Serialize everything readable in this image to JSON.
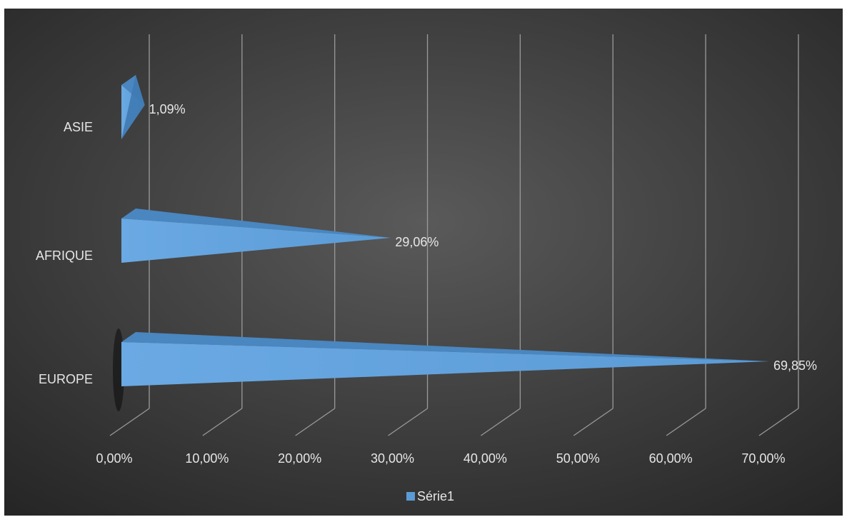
{
  "chart_data": {
    "type": "bar",
    "orientation": "horizontal",
    "style": "3d-pyramid",
    "categories": [
      "ASIE",
      "AFRIQUE",
      "EUROPE"
    ],
    "series": [
      {
        "name": "Série1",
        "values": [
          1.09,
          29.06,
          69.85
        ],
        "data_labels": [
          "1,09%",
          "29,06%",
          "69,85%"
        ]
      }
    ],
    "x_ticks": [
      0,
      10,
      20,
      30,
      40,
      50,
      60,
      70
    ],
    "x_tick_labels": [
      "0,00%",
      "10,00%",
      "20,00%",
      "30,00%",
      "40,00%",
      "50,00%",
      "60,00%",
      "70,00%"
    ],
    "xlim": [
      0,
      70
    ],
    "title": "",
    "xlabel": "",
    "ylabel": "",
    "grid": true,
    "legend_position": "bottom",
    "colors": {
      "background_center": "#5a5a5a",
      "background_edge": "#262626",
      "border": "#ffffff",
      "series": "#5b9bd5",
      "gridline": "#9a9a9a",
      "text": "#e6e6e6"
    }
  }
}
